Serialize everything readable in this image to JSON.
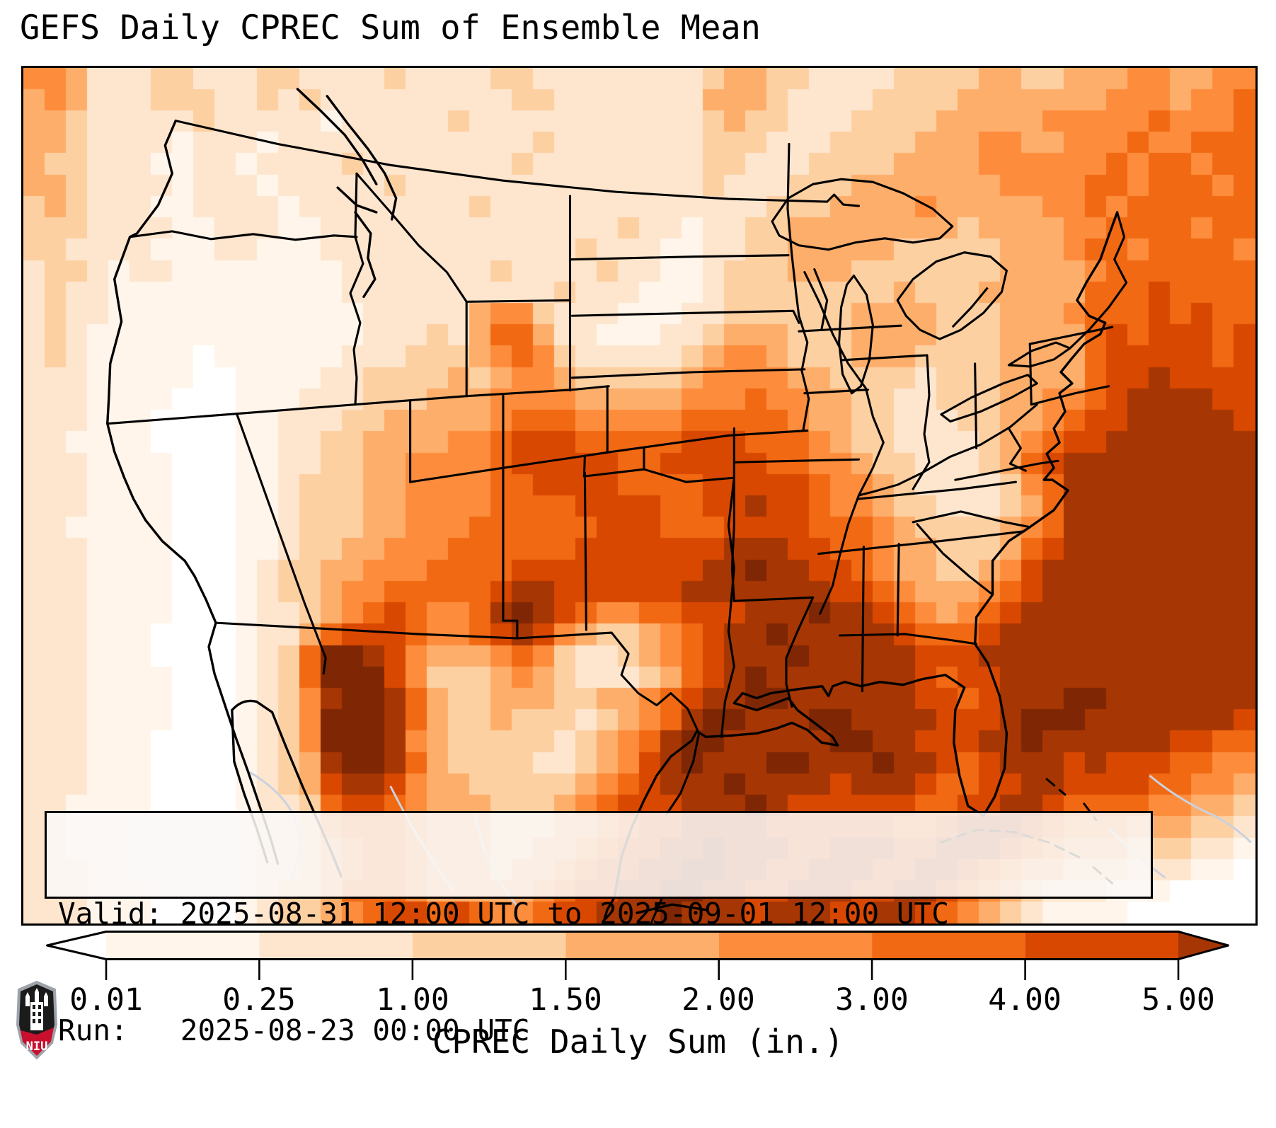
{
  "title": "GEFS Daily CPREC Sum of Ensemble Mean",
  "annotation": {
    "valid_line": "Valid: 2025-08-31 12:00 UTC to 2025-09-01 12:00 UTC",
    "run_line": "Run:   2025-08-23 00:00 UTC"
  },
  "logo": {
    "name": "NIU-shield-logo",
    "text": "NIU",
    "red": "#c8102e",
    "black": "#1b1b1b",
    "silver": "#9ea3ab"
  },
  "chart_data": {
    "type": "heatmap",
    "title": "GEFS Daily CPREC Sum of Ensemble Mean",
    "region": "CONUS and surrounding waters, pixelated ensemble-mean daily precipitation",
    "valid": "2025-08-31 12:00 UTC to 2025-09-01 12:00 UTC",
    "run": "2025-08-23 00:00 UTC",
    "colorbar": {
      "label": "CPREC Daily Sum (in.)",
      "tick_labels": [
        "0.01",
        "0.25",
        "1.00",
        "1.50",
        "2.00",
        "3.00",
        "4.00",
        "5.00"
      ],
      "boundaries_in": [
        0.01,
        0.25,
        1.0,
        1.5,
        2.0,
        3.0,
        4.0,
        5.0
      ],
      "segment_colors": [
        "#fff5eb",
        "#fee6ce",
        "#fdd0a2",
        "#fdae6b",
        "#fd8d3c",
        "#f16913",
        "#d94801"
      ],
      "under_color": "#ffffff",
      "over_color": "#a63603",
      "extend": "both",
      "orientation": "horizontal"
    },
    "grid": {
      "cols": 58,
      "rows": 40,
      "palette": [
        "#ffffff",
        "#fff5eb",
        "#fee6ce",
        "#fdd0a2",
        "#fdae6b",
        "#fd8d3c",
        "#f16913",
        "#d94801",
        "#a63603",
        "#7f2704"
      ],
      "cells": [
        "5542223322233222232222332222222234433222233334433444554455",
        "4542223332232322222222233222222244432222333344444445554556",
        "4432222232222212222232222222222234332223333444445555565556",
        "4432222122212222222222223222222233322233334445544555655666",
        "4332221122122223222222232222222233222333344445555556566566",
        "4432222122212222232222222222222232223334444444555566566656",
        "3432221122221222222223222222222222233344445444445565666666",
        "3332222112221122222222222222322122334444444434444556666566",
        "3322221112211122222222222232221122334444433333444566566665",
        "2332122111111112222222322223221123334443333333444456666666",
        "2322111111111112222222222322211123333333343334444466676666",
        "2322111111111111222224553222111223333334444333444566676766",
        "2321111111111111222324664221112234443334444333444467677767",
        "2321111101111112223334565322222345543334443333444467777767",
        "2221111100111122333343455433333455554433332333444467787777",
        "2221111000111222333444555544444555655443322333445567888877",
        "2221110000112223344444566655555666665443322233445677888887",
        "2211110000112233444455677766666777666543322223456778888888",
        "2221111000112233445555677777667777766554332223467888888888",
        "2221111000112333445555667777666677777655432222356888888888",
        "2221111000112333445555666677776677877655433222346888888888",
        "2211111000112333445556666667776667777666543333456888888888",
        "2221111000112334455566666677777778887766544333467888888888",
        "2221111000123344555666677777777788988776544334578888888888",
        "2221111000123345566666788777777888888877654445678888888888",
        "2221111000122345676556898765566777888988765456788888888888",
        "2221110000122467776556787543345678898888876667888888888888",
        "2221110000123699875444565322345678889888887778888888888888",
        "2221111000123699975333454322234678988888887677888888888888",
        "2221111000123589986433444334456788998888887767888998888888",
        "2221111000123599986433433323456899888998888777899988888887",
        "2221110000123599985433333234568998888899887778898888887766",
        "2221110000123489986433332234578988899888988767888787776655",
        "2221110000123478875443333345678889888878887667788777766554",
        "2211110000122367765444333456777888987777776677887666655443",
        "2211100000122356665444333445677888877777766788876555444332",
        "2211100000122345665444334456778898887788877888765444333221",
        "2221100000122345665444344567788998877888778876544333222110",
        "2221110000123346665444445677889988778887788765432221110000",
        "2221110000123345677676556778889888788877887654321111000000"
      ]
    }
  }
}
